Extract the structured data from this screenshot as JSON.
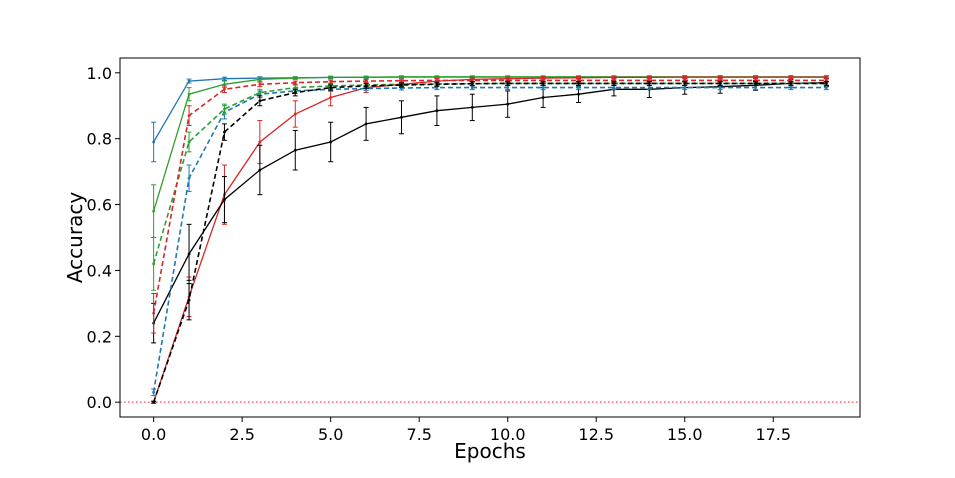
{
  "chart_data": {
    "type": "line",
    "title": "",
    "xlabel": "Epochs",
    "ylabel": "Accuracy",
    "xlim": [
      -0.95,
      19.95
    ],
    "ylim": [
      -0.045,
      1.045
    ],
    "x_ticks": [
      0.0,
      2.5,
      5.0,
      7.5,
      10.0,
      12.5,
      15.0,
      17.5
    ],
    "x_tick_labels": [
      "0.0",
      "2.5",
      "5.0",
      "7.5",
      "10.0",
      "12.5",
      "15.0",
      "17.5"
    ],
    "y_ticks": [
      0.0,
      0.2,
      0.4,
      0.6,
      0.8,
      1.0
    ],
    "y_tick_labels": [
      "0.0",
      "0.2",
      "0.4",
      "0.6",
      "0.8",
      "1.0"
    ],
    "grid": false,
    "legend": false,
    "x": [
      0,
      1,
      2,
      3,
      4,
      5,
      6,
      7,
      8,
      9,
      10,
      11,
      12,
      13,
      14,
      15,
      16,
      17,
      18,
      19
    ],
    "reference_line": {
      "y": 0.0,
      "color": "#d62728",
      "style": "dotted"
    },
    "series": [
      {
        "color": "#1f77b4",
        "style": "solid",
        "values": [
          0.79,
          0.975,
          0.982,
          0.984,
          0.985,
          0.986,
          0.986,
          0.987,
          0.987,
          0.987,
          0.987,
          0.987,
          0.987,
          0.987,
          0.987,
          0.987,
          0.987,
          0.987,
          0.987,
          0.987
        ],
        "errors": [
          0.06,
          0.006,
          0.005,
          0.004,
          0.003,
          0.003,
          0.003,
          0.003,
          0.003,
          0.003,
          0.003,
          0.003,
          0.003,
          0.003,
          0.003,
          0.003,
          0.003,
          0.003,
          0.003,
          0.003
        ]
      },
      {
        "color": "#2ca02c",
        "style": "solid",
        "values": [
          0.58,
          0.935,
          0.965,
          0.98,
          0.984,
          0.986,
          0.987,
          0.988,
          0.988,
          0.988,
          0.988,
          0.988,
          0.988,
          0.988,
          0.988,
          0.988,
          0.988,
          0.988,
          0.988,
          0.988
        ],
        "errors": [
          0.08,
          0.02,
          0.01,
          0.005,
          0.004,
          0.004,
          0.003,
          0.003,
          0.003,
          0.003,
          0.003,
          0.003,
          0.003,
          0.003,
          0.003,
          0.003,
          0.003,
          0.003,
          0.003,
          0.003
        ]
      },
      {
        "color": "#d62728",
        "style": "solid",
        "values": [
          0.0,
          0.32,
          0.63,
          0.79,
          0.875,
          0.925,
          0.955,
          0.965,
          0.975,
          0.98,
          0.982,
          0.984,
          0.985,
          0.986,
          0.986,
          0.987,
          0.987,
          0.987,
          0.987,
          0.987
        ],
        "errors": [
          0.003,
          0.06,
          0.09,
          0.065,
          0.04,
          0.025,
          0.015,
          0.01,
          0.008,
          0.006,
          0.005,
          0.005,
          0.004,
          0.004,
          0.004,
          0.004,
          0.004,
          0.004,
          0.004,
          0.004
        ]
      },
      {
        "color": "#000000",
        "style": "solid",
        "values": [
          0.24,
          0.45,
          0.615,
          0.705,
          0.765,
          0.79,
          0.845,
          0.865,
          0.885,
          0.895,
          0.905,
          0.925,
          0.935,
          0.95,
          0.95,
          0.955,
          0.958,
          0.962,
          0.968,
          0.97
        ],
        "errors": [
          0.06,
          0.09,
          0.07,
          0.075,
          0.06,
          0.06,
          0.05,
          0.05,
          0.045,
          0.04,
          0.04,
          0.03,
          0.025,
          0.02,
          0.025,
          0.02,
          0.02,
          0.015,
          0.012,
          0.012
        ]
      },
      {
        "color": "#1f77b4",
        "style": "dashed",
        "values": [
          0.03,
          0.68,
          0.88,
          0.935,
          0.945,
          0.95,
          0.952,
          0.954,
          0.955,
          0.955,
          0.955,
          0.955,
          0.955,
          0.955,
          0.955,
          0.955,
          0.955,
          0.955,
          0.955,
          0.955
        ],
        "errors": [
          0.01,
          0.04,
          0.02,
          0.01,
          0.008,
          0.006,
          0.006,
          0.006,
          0.006,
          0.006,
          0.006,
          0.006,
          0.006,
          0.006,
          0.006,
          0.006,
          0.006,
          0.006,
          0.006,
          0.006
        ]
      },
      {
        "color": "#2ca02c",
        "style": "dashed",
        "values": [
          0.42,
          0.79,
          0.89,
          0.94,
          0.955,
          0.96,
          0.963,
          0.965,
          0.966,
          0.967,
          0.968,
          0.968,
          0.968,
          0.968,
          0.968,
          0.968,
          0.968,
          0.968,
          0.968,
          0.968
        ],
        "errors": [
          0.08,
          0.03,
          0.015,
          0.01,
          0.008,
          0.006,
          0.006,
          0.006,
          0.006,
          0.006,
          0.006,
          0.006,
          0.006,
          0.006,
          0.006,
          0.006,
          0.006,
          0.006,
          0.006,
          0.006
        ]
      },
      {
        "color": "#d62728",
        "style": "dashed",
        "values": [
          0.27,
          0.87,
          0.95,
          0.965,
          0.97,
          0.973,
          0.975,
          0.976,
          0.977,
          0.977,
          0.977,
          0.977,
          0.977,
          0.977,
          0.977,
          0.977,
          0.977,
          0.977,
          0.977,
          0.977
        ],
        "errors": [
          0.06,
          0.03,
          0.01,
          0.007,
          0.005,
          0.005,
          0.005,
          0.005,
          0.005,
          0.005,
          0.005,
          0.005,
          0.005,
          0.005,
          0.005,
          0.005,
          0.005,
          0.005,
          0.005,
          0.005
        ]
      },
      {
        "color": "#000000",
        "style": "dashed",
        "values": [
          0.0,
          0.31,
          0.82,
          0.915,
          0.94,
          0.955,
          0.96,
          0.963,
          0.965,
          0.967,
          0.968,
          0.968,
          0.968,
          0.968,
          0.968,
          0.968,
          0.968,
          0.968,
          0.968,
          0.968
        ],
        "errors": [
          0.003,
          0.06,
          0.025,
          0.015,
          0.01,
          0.008,
          0.007,
          0.006,
          0.006,
          0.006,
          0.006,
          0.006,
          0.006,
          0.006,
          0.006,
          0.006,
          0.006,
          0.006,
          0.006,
          0.006
        ]
      }
    ]
  }
}
